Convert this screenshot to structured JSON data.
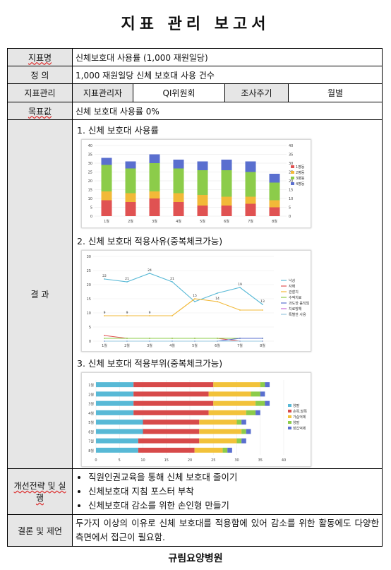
{
  "title": "지표 관리 보고서",
  "rows": {
    "indicator_label": "지표명",
    "indicator_value": "신체보호대 사용률 (1,000 재원일당)",
    "definition_label": "정 의",
    "definition_value": "1,000 재원일당 신체 보호대 사용 건수",
    "management_label": "지표관리",
    "manager_label": "지표관리자",
    "manager_value": "QI위원회",
    "cycle_label": "조사주기",
    "cycle_value": "월별",
    "target_label": "목표값",
    "target_value": "신체 보호대 사용률 0%",
    "result_label": "결 과",
    "strategy_label": "개선전략 및 실행",
    "conclusion_label": "결론 및 제언",
    "conclusion_value": "두가지 이상의 이유로 신체 보호대를 적용함에 있어 감소를 위한 활동에도 다양한 측면에서 접근이 필요함."
  },
  "sections": {
    "s1": "1. 신체 보호대 사용률",
    "s2": "2. 신체 보호대 적용사유(중복체크가능)",
    "s3": "3. 신체 보호대 적용부위(중복체크가능)"
  },
  "strategies": [
    "직원인권교육을 통해 신체 보호대 줄이기",
    "신체보호대 지침 포스터 부착",
    "신체보호대 감소를 위한 손인형 만들기"
  ],
  "footer": "규림요양병원",
  "colors": {
    "s1": "#e05252",
    "s2": "#f2b938",
    "s3": "#8ccc4a",
    "s4": "#5a6fcf",
    "s5": "#58b9d6"
  },
  "chart_data": [
    {
      "type": "bar",
      "stacked": true,
      "categories": [
        "1월",
        "2월",
        "3월",
        "4월",
        "5월",
        "6월",
        "7월",
        "8월"
      ],
      "ylim": [
        0,
        40
      ],
      "yticks": [
        0,
        5,
        10,
        15,
        20,
        25,
        30,
        35,
        40
      ],
      "series": [
        {
          "name": "1병동",
          "values": [
            9,
            8,
            10,
            8,
            6,
            6,
            7,
            5
          ]
        },
        {
          "name": "2병동",
          "values": [
            5,
            5,
            4,
            5,
            6,
            5,
            4,
            4
          ]
        },
        {
          "name": "3병동",
          "values": [
            15,
            14,
            16,
            14,
            14,
            15,
            14,
            10
          ]
        },
        {
          "name": "4병동",
          "values": [
            4,
            4,
            5,
            5,
            5,
            6,
            6,
            5
          ]
        }
      ]
    },
    {
      "type": "line",
      "categories": [
        "1월",
        "2월",
        "3월",
        "4월",
        "5월",
        "6월",
        "7월",
        "8월"
      ],
      "ylim": [
        0,
        30
      ],
      "yticks": [
        0,
        5,
        10,
        15,
        20,
        25,
        30
      ],
      "series": [
        {
          "name": "낙상",
          "values": [
            22,
            21,
            24,
            21,
            14,
            17,
            19,
            13
          ],
          "labels": [
            "22",
            "21",
            "24",
            "21",
            "",
            "",
            "19",
            "13"
          ]
        },
        {
          "name": "자해",
          "values": [
            2,
            1,
            1,
            1,
            1,
            1,
            0,
            0
          ]
        },
        {
          "name": "관찰치",
          "values": [
            9,
            9,
            9,
            9,
            15,
            14,
            11,
            11
          ],
          "labels": [
            "9",
            "9",
            "9",
            "",
            "15",
            "14",
            "",
            ""
          ]
        },
        {
          "name": "수액치료",
          "values": [
            1,
            1,
            1,
            1,
            1,
            1,
            1,
            1
          ]
        },
        {
          "name": "과도한 움직임",
          "values": [
            0,
            0,
            0,
            0,
            0,
            0,
            1,
            1
          ]
        },
        {
          "name": "치료방해",
          "values": [
            0,
            0,
            0,
            0,
            0,
            0,
            0,
            0
          ]
        },
        {
          "name": "특별한 사용",
          "values": [
            0,
            0,
            0,
            0,
            0,
            0,
            0,
            0
          ]
        }
      ]
    },
    {
      "type": "bar",
      "orientation": "horizontal",
      "stacked": true,
      "categories": [
        "1월",
        "2월",
        "3월",
        "4월",
        "5월",
        "6월",
        "7월",
        "8월"
      ],
      "xlim": [
        0,
        40
      ],
      "xticks": [
        0,
        5,
        10,
        15,
        20,
        25,
        30,
        35,
        40
      ],
      "series": [
        {
          "name": "양팔",
          "values": [
            8,
            8,
            8,
            8,
            10,
            10,
            9,
            9
          ]
        },
        {
          "name": "손목,발목",
          "values": [
            17,
            16,
            17,
            16,
            12,
            12,
            13,
            12
          ]
        },
        {
          "name": "가슴억제",
          "values": [
            10,
            9,
            9,
            8,
            8,
            9,
            8,
            6
          ]
        },
        {
          "name": "양발",
          "values": [
            1,
            2,
            2,
            2,
            1,
            1,
            1,
            1
          ]
        },
        {
          "name": "장갑억제",
          "values": [
            1,
            1,
            1,
            1,
            1,
            1,
            1,
            1
          ]
        }
      ]
    }
  ]
}
